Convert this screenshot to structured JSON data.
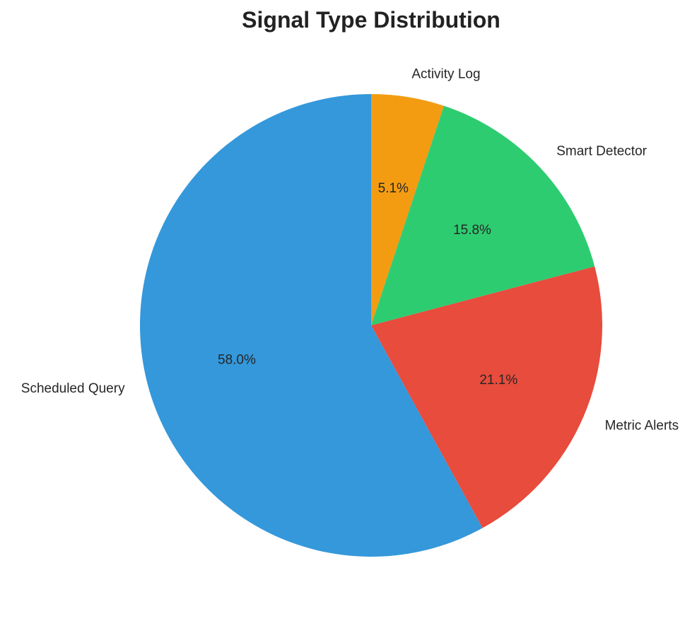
{
  "chart_data": {
    "type": "pie",
    "title": "Signal Type Distribution",
    "start_angle_deg": 90,
    "direction": "clockwise",
    "slices": [
      {
        "label": "Activity Log",
        "value": 5.1,
        "pct_label": "5.1%",
        "color": "#F39C12"
      },
      {
        "label": "Smart Detector",
        "value": 15.8,
        "pct_label": "15.8%",
        "color": "#2ECC71"
      },
      {
        "label": "Metric Alerts",
        "value": 21.1,
        "pct_label": "21.1%",
        "color": "#E74C3C"
      },
      {
        "label": "Scheduled Query",
        "value": 58.0,
        "pct_label": "58.0%",
        "color": "#3498DB"
      }
    ]
  }
}
